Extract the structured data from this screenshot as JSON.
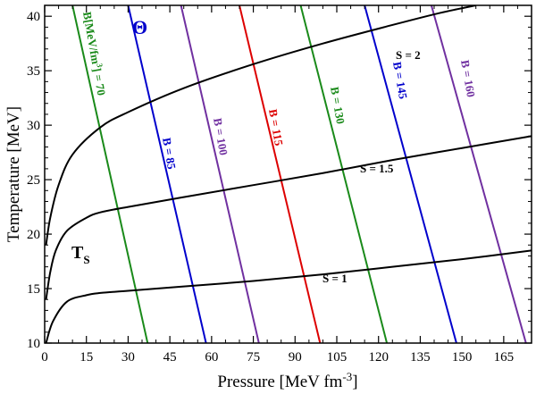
{
  "chart_data": {
    "type": "line",
    "title": "",
    "xlabel": "Pressure [MeV fm",
    "xlabel_sup": "-3",
    "xlabel_close": "]",
    "ylabel": "Temperature [MeV]",
    "xlim": [
      0,
      175
    ],
    "ylim": [
      10,
      41
    ],
    "x_ticks": [
      0,
      15,
      30,
      45,
      60,
      75,
      90,
      105,
      120,
      135,
      150,
      165
    ],
    "y_ticks": [
      10,
      15,
      20,
      25,
      30,
      35,
      40
    ],
    "grid": false,
    "symbol": "Θ",
    "ts_label": "T",
    "ts_sub": "S",
    "isentropes": [
      {
        "label": "S = 1",
        "color": "#000000",
        "points": [
          [
            0.5,
            10
          ],
          [
            3,
            12
          ],
          [
            8,
            13.8
          ],
          [
            15,
            14.4
          ],
          [
            20,
            14.6
          ],
          [
            30,
            14.8
          ],
          [
            50,
            15.2
          ],
          [
            75,
            15.7
          ],
          [
            100,
            16.3
          ],
          [
            125,
            17
          ],
          [
            150,
            17.7
          ],
          [
            175,
            18.5
          ]
        ]
      },
      {
        "label": "S = 1.5",
        "color": "#000000",
        "points": [
          [
            0.5,
            14
          ],
          [
            2,
            16.5
          ],
          [
            4,
            18.5
          ],
          [
            8,
            20.3
          ],
          [
            15,
            21.5
          ],
          [
            20,
            22
          ],
          [
            30,
            22.5
          ],
          [
            50,
            23.4
          ],
          [
            75,
            24.5
          ],
          [
            100,
            25.6
          ],
          [
            125,
            26.8
          ],
          [
            150,
            27.9
          ],
          [
            175,
            29
          ]
        ]
      },
      {
        "label": "S = 2",
        "color": "#000000",
        "points": [
          [
            0.5,
            19
          ],
          [
            2,
            21.5
          ],
          [
            5,
            24.5
          ],
          [
            10,
            27.3
          ],
          [
            20,
            29.8
          ],
          [
            30,
            31.2
          ],
          [
            50,
            33.4
          ],
          [
            75,
            35.6
          ],
          [
            100,
            37.5
          ],
          [
            125,
            39.2
          ],
          [
            142,
            40.3
          ],
          [
            155,
            41
          ]
        ]
      }
    ],
    "bag_lines": [
      {
        "label": "B[MeV/fm",
        "label_sup": "3",
        "label_tail": "] = 70",
        "color": "#1a8a1a",
        "points": [
          [
            10,
            41
          ],
          [
            37,
            10
          ]
        ]
      },
      {
        "label": "B = 85",
        "color": "#0000cc",
        "points": [
          [
            30,
            41
          ],
          [
            58,
            10
          ]
        ]
      },
      {
        "label": "B = 100",
        "color": "#7030a0",
        "points": [
          [
            49,
            41
          ],
          [
            77,
            10
          ]
        ]
      },
      {
        "label": "B = 115",
        "color": "#dd0000",
        "points": [
          [
            70,
            41
          ],
          [
            99,
            10
          ]
        ]
      },
      {
        "label": "B = 130",
        "color": "#1a8a1a",
        "points": [
          [
            92,
            41
          ],
          [
            123,
            10
          ]
        ]
      },
      {
        "label": "B = 145",
        "color": "#0000cc",
        "points": [
          [
            115,
            41
          ],
          [
            148,
            10
          ]
        ]
      },
      {
        "label": "B = 160",
        "color": "#7030a0",
        "points": [
          [
            139,
            41
          ],
          [
            173,
            10
          ]
        ]
      }
    ]
  }
}
